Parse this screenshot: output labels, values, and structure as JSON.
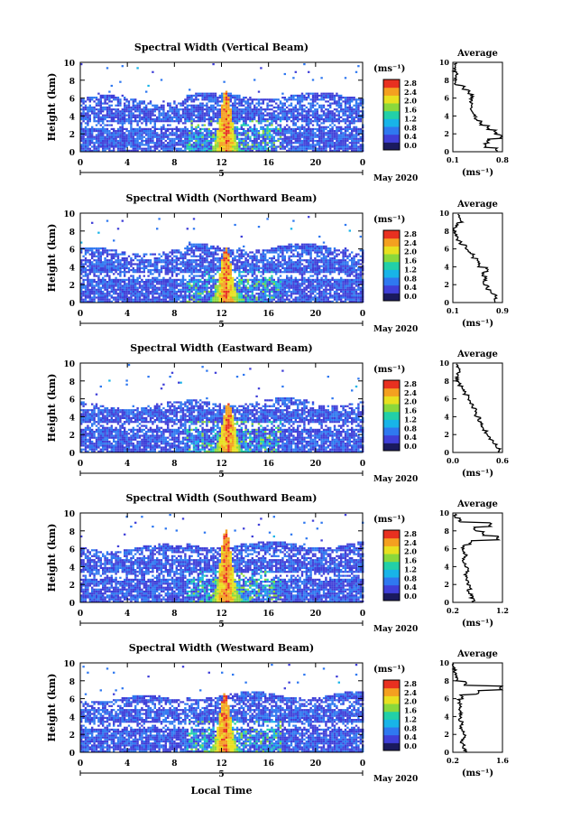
{
  "figure": {
    "unit_label": "(ms⁻¹)",
    "date_label": "May 2020",
    "day_label": "5",
    "xlabel": "Local Time",
    "ylabel": "Height (km)",
    "avg_title": "Average",
    "avg_xlabel": "(ms⁻¹)",
    "x_ticks": [
      "0",
      "4",
      "8",
      "12",
      "16",
      "20",
      "0"
    ],
    "y_ticks": [
      "0",
      "2",
      "4",
      "6",
      "8",
      "10"
    ],
    "colorbar_ticks": [
      "0.0",
      "0.4",
      "0.8",
      "1.2",
      "1.6",
      "2.0",
      "2.4",
      "2.8"
    ],
    "colormap": [
      "#1a1a5e",
      "#3f3fd8",
      "#2f78f0",
      "#18b4e8",
      "#22d0a8",
      "#8ad83c",
      "#e8e020",
      "#f4a020",
      "#e83020"
    ]
  },
  "chart_data": [
    {
      "type": "heatmap",
      "title": "Spectral Width (Vertical Beam)",
      "xlabel": "Local Time",
      "ylabel": "Height (km)",
      "xlim": [
        0,
        24
      ],
      "ylim": [
        0,
        10
      ],
      "colorbar": {
        "label": "(ms⁻¹)",
        "range": [
          0,
          3.0
        ]
      },
      "burst": {
        "center_hour": 12.3,
        "top_km": 6.8,
        "max_value": 3.0
      },
      "echo_top_km": 6.2,
      "average_profile": {
        "xlim": [
          0.1,
          0.8
        ],
        "x_ticks": [
          "0.1",
          "0.8"
        ],
        "height_km": [
          0,
          0.5,
          1,
          1.5,
          2,
          2.5,
          3,
          3.5,
          4,
          4.5,
          5,
          5.5,
          6,
          6.5,
          7,
          7.5,
          8,
          8.5,
          9,
          9.5
        ],
        "values": [
          0.72,
          0.55,
          0.6,
          0.78,
          0.7,
          0.6,
          0.5,
          0.42,
          0.4,
          0.36,
          0.38,
          0.36,
          0.37,
          0.32,
          0.25,
          0.12,
          0.13,
          0.15,
          0.12,
          0.14
        ]
      }
    },
    {
      "type": "heatmap",
      "title": "Spectral Width (Northward Beam)",
      "xlabel": "Local Time",
      "ylabel": "Height (km)",
      "xlim": [
        0,
        24
      ],
      "ylim": [
        0,
        10
      ],
      "colorbar": {
        "label": "(ms⁻¹)",
        "range": [
          0,
          3.0
        ]
      },
      "burst": {
        "center_hour": 12.3,
        "top_km": 6.0,
        "max_value": 3.0
      },
      "echo_top_km": 6.1,
      "average_profile": {
        "xlim": [
          0.1,
          0.9
        ],
        "x_ticks": [
          "0.1",
          "0.9"
        ],
        "height_km": [
          0,
          0.5,
          1,
          1.5,
          2,
          2.5,
          3,
          3.5,
          4,
          4.5,
          5,
          5.5,
          6,
          6.5,
          7,
          7.5,
          8,
          8.5,
          9,
          9.5
        ],
        "values": [
          0.78,
          0.8,
          0.72,
          0.66,
          0.6,
          0.62,
          0.58,
          0.66,
          0.52,
          0.5,
          0.42,
          0.36,
          0.3,
          0.22,
          0.18,
          0.14,
          0.12,
          0.17,
          0.24,
          0.2
        ]
      }
    },
    {
      "type": "heatmap",
      "title": "Spectral Width (Eastward Beam)",
      "xlabel": "Local Time",
      "ylabel": "Height (km)",
      "xlim": [
        0,
        24
      ],
      "ylim": [
        0,
        10
      ],
      "colorbar": {
        "label": "(ms⁻¹)",
        "range": [
          0,
          3.0
        ]
      },
      "burst": {
        "center_hour": 12.5,
        "top_km": 5.5,
        "max_value": 3.0
      },
      "echo_top_km": 5.6,
      "average_profile": {
        "xlim": [
          0.0,
          0.6
        ],
        "x_ticks": [
          "0.0",
          "0.6"
        ],
        "height_km": [
          0,
          0.5,
          1,
          1.5,
          2,
          2.5,
          3,
          3.5,
          4,
          4.5,
          5,
          5.5,
          6,
          6.5,
          7,
          7.5,
          8,
          8.5,
          9,
          9.5
        ],
        "values": [
          0.56,
          0.52,
          0.48,
          0.44,
          0.4,
          0.36,
          0.35,
          0.32,
          0.28,
          0.28,
          0.24,
          0.2,
          0.18,
          0.14,
          0.12,
          0.08,
          0.05,
          0.06,
          0.08,
          0.05
        ]
      }
    },
    {
      "type": "heatmap",
      "title": "Spectral Width (Southward Beam)",
      "xlabel": "Local Time",
      "ylabel": "Height (km)",
      "xlim": [
        0,
        24
      ],
      "ylim": [
        0,
        10
      ],
      "colorbar": {
        "label": "(ms⁻¹)",
        "range": [
          0,
          3.0
        ]
      },
      "burst": {
        "center_hour": 12.3,
        "top_km": 8.0,
        "max_value": 3.0
      },
      "echo_top_km": 6.4,
      "average_profile": {
        "xlim": [
          0.2,
          1.2
        ],
        "x_ticks": [
          "0.2",
          "1.2"
        ],
        "height_km": [
          0,
          0.5,
          1,
          1.5,
          2,
          2.5,
          3,
          3.5,
          4,
          4.5,
          5,
          5.5,
          6,
          6.5,
          7,
          7.5,
          8,
          8.5,
          9,
          9.5
        ],
        "values": [
          0.62,
          0.58,
          0.5,
          0.55,
          0.5,
          0.48,
          0.46,
          0.5,
          0.44,
          0.4,
          0.46,
          0.42,
          0.4,
          0.55,
          1.1,
          0.8,
          0.65,
          0.95,
          0.35,
          0.25
        ]
      }
    },
    {
      "type": "heatmap",
      "title": "Spectral Width (Westward Beam)",
      "xlabel": "Local Time",
      "ylabel": "Height (km)",
      "xlim": [
        0,
        24
      ],
      "ylim": [
        0,
        10
      ],
      "colorbar": {
        "label": "(ms⁻¹)",
        "range": [
          0,
          3.0
        ]
      },
      "burst": {
        "center_hour": 12.2,
        "top_km": 6.5,
        "max_value": 3.0
      },
      "echo_top_km": 6.3,
      "average_profile": {
        "xlim": [
          0.2,
          1.6
        ],
        "x_ticks": [
          "0.2",
          "1.6"
        ],
        "height_km": [
          0,
          0.5,
          1,
          1.5,
          2,
          2.5,
          3,
          3.5,
          4,
          4.5,
          5,
          5.5,
          6,
          6.5,
          7,
          7.5,
          8,
          8.5,
          9,
          9.5
        ],
        "values": [
          0.55,
          0.5,
          0.45,
          0.52,
          0.48,
          0.42,
          0.45,
          0.4,
          0.42,
          0.4,
          0.42,
          0.38,
          0.45,
          0.9,
          1.55,
          0.55,
          0.3,
          0.28,
          0.25,
          0.22
        ]
      }
    }
  ]
}
